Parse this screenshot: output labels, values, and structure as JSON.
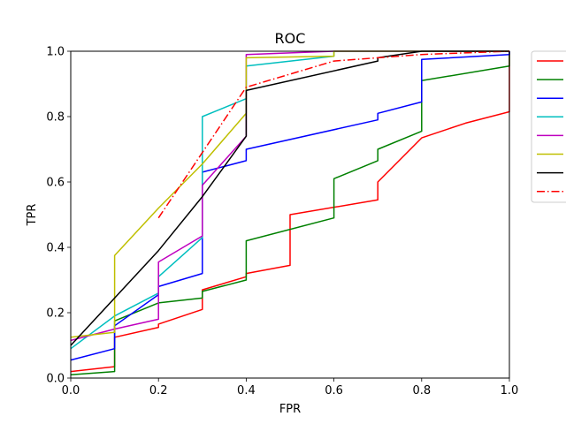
{
  "chart_data": {
    "type": "line",
    "title": "ROC",
    "xlabel": "FPR",
    "ylabel": "TPR",
    "xlim": [
      0.0,
      1.0
    ],
    "ylim": [
      0.0,
      1.0
    ],
    "xticks": [
      "0.0",
      "0.2",
      "0.4",
      "0.6",
      "0.8",
      "1.0"
    ],
    "yticks": [
      "0.0",
      "0.2",
      "0.4",
      "0.6",
      "0.8",
      "1.0"
    ],
    "grid": false,
    "legend_placement": "outside-right",
    "series": [
      {
        "color": "#ff0000",
        "style": "solid",
        "points": [
          [
            0,
            0.02
          ],
          [
            0.1,
            0.035
          ],
          [
            0.1,
            0.125
          ],
          [
            0.2,
            0.155
          ],
          [
            0.2,
            0.165
          ],
          [
            0.3,
            0.21
          ],
          [
            0.3,
            0.27
          ],
          [
            0.4,
            0.31
          ],
          [
            0.4,
            0.32
          ],
          [
            0.5,
            0.345
          ],
          [
            0.5,
            0.5
          ],
          [
            0.7,
            0.545
          ],
          [
            0.7,
            0.6
          ],
          [
            0.8,
            0.735
          ],
          [
            0.9,
            0.78
          ],
          [
            1.0,
            0.815
          ],
          [
            1.0,
            1.0
          ]
        ]
      },
      {
        "color": "#008000",
        "style": "solid",
        "points": [
          [
            0,
            0.01
          ],
          [
            0.1,
            0.02
          ],
          [
            0.1,
            0.175
          ],
          [
            0.2,
            0.23
          ],
          [
            0.3,
            0.245
          ],
          [
            0.3,
            0.265
          ],
          [
            0.4,
            0.3
          ],
          [
            0.4,
            0.42
          ],
          [
            0.6,
            0.49
          ],
          [
            0.6,
            0.61
          ],
          [
            0.7,
            0.665
          ],
          [
            0.7,
            0.7
          ],
          [
            0.8,
            0.755
          ],
          [
            0.8,
            0.91
          ],
          [
            1.0,
            0.955
          ],
          [
            1.0,
            1.0
          ]
        ]
      },
      {
        "color": "#0000ff",
        "style": "solid",
        "points": [
          [
            0,
            0.055
          ],
          [
            0.1,
            0.09
          ],
          [
            0.1,
            0.16
          ],
          [
            0.2,
            0.255
          ],
          [
            0.2,
            0.28
          ],
          [
            0.3,
            0.32
          ],
          [
            0.3,
            0.63
          ],
          [
            0.4,
            0.665
          ],
          [
            0.4,
            0.7
          ],
          [
            0.7,
            0.79
          ],
          [
            0.7,
            0.81
          ],
          [
            0.8,
            0.845
          ],
          [
            0.8,
            0.975
          ],
          [
            1.0,
            0.99
          ],
          [
            1.0,
            1.0
          ]
        ]
      },
      {
        "color": "#00bfbf",
        "style": "solid",
        "points": [
          [
            0,
            0.09
          ],
          [
            0.1,
            0.19
          ],
          [
            0.2,
            0.26
          ],
          [
            0.2,
            0.31
          ],
          [
            0.3,
            0.43
          ],
          [
            0.3,
            0.8
          ],
          [
            0.4,
            0.855
          ],
          [
            0.4,
            0.955
          ],
          [
            0.6,
            0.985
          ],
          [
            0.6,
            1.0
          ],
          [
            1.0,
            1.0
          ]
        ]
      },
      {
        "color": "#bf00bf",
        "style": "solid",
        "points": [
          [
            0,
            0.115
          ],
          [
            0.1,
            0.15
          ],
          [
            0.2,
            0.18
          ],
          [
            0.2,
            0.355
          ],
          [
            0.3,
            0.435
          ],
          [
            0.3,
            0.59
          ],
          [
            0.4,
            0.74
          ],
          [
            0.4,
            0.99
          ],
          [
            0.6,
            1.0
          ],
          [
            1.0,
            1.0
          ]
        ]
      },
      {
        "color": "#bfbf00",
        "style": "solid",
        "points": [
          [
            0,
            0.125
          ],
          [
            0.1,
            0.14
          ],
          [
            0.1,
            0.375
          ],
          [
            0.2,
            0.52
          ],
          [
            0.3,
            0.655
          ],
          [
            0.4,
            0.81
          ],
          [
            0.4,
            0.98
          ],
          [
            0.6,
            0.985
          ],
          [
            0.6,
            1.0
          ],
          [
            1.0,
            1.0
          ]
        ]
      },
      {
        "color": "#000000",
        "style": "solid",
        "points": [
          [
            0,
            0.1
          ],
          [
            0.1,
            0.245
          ],
          [
            0.2,
            0.39
          ],
          [
            0.3,
            0.555
          ],
          [
            0.4,
            0.74
          ],
          [
            0.4,
            0.88
          ],
          [
            0.7,
            0.97
          ],
          [
            0.7,
            0.98
          ],
          [
            0.8,
            1.0
          ],
          [
            1.0,
            1.0
          ]
        ]
      },
      {
        "color": "#ff0000",
        "style": "dashdot",
        "points": [
          [
            0.2,
            0.49
          ],
          [
            0.3,
            0.69
          ],
          [
            0.4,
            0.89
          ],
          [
            0.6,
            0.97
          ],
          [
            0.8,
            0.99
          ],
          [
            1.0,
            1.0
          ]
        ]
      }
    ]
  }
}
